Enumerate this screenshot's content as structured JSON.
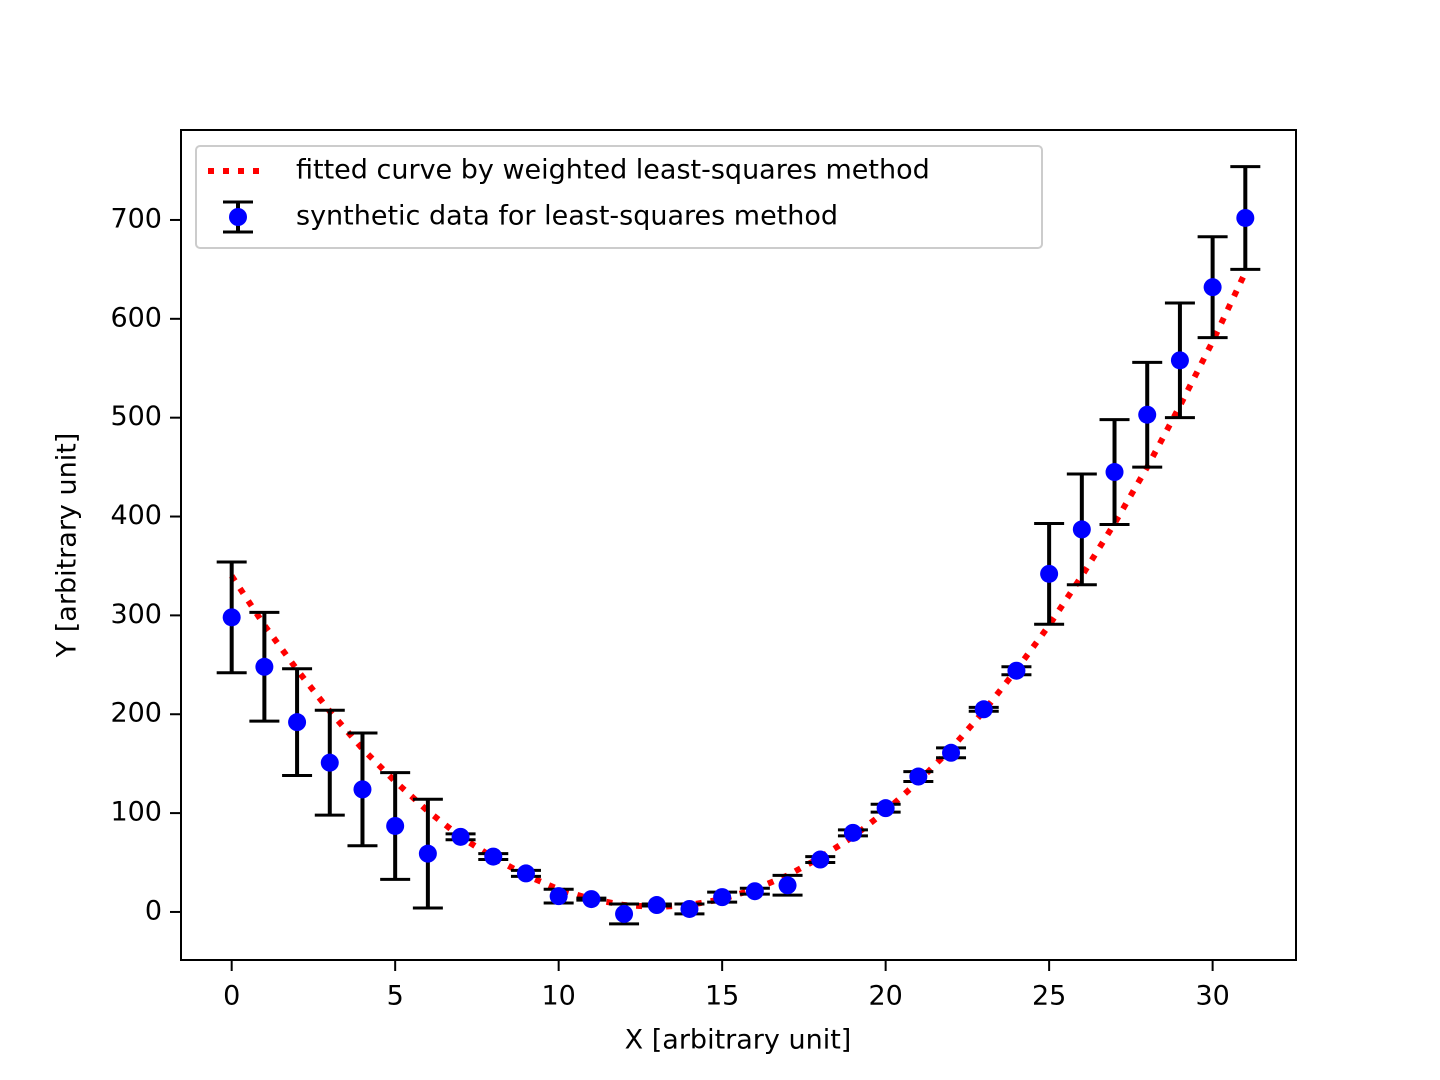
{
  "chart_data": {
    "type": "errorbar",
    "x_label": "X [arbitrary unit]",
    "y_label": "Y [arbitrary unit]",
    "x": [
      0,
      1,
      2,
      3,
      4,
      5,
      6,
      7,
      8,
      9,
      10,
      11,
      12,
      13,
      14,
      15,
      16,
      17,
      18,
      19,
      20,
      21,
      22,
      23,
      24,
      25,
      26,
      27,
      28,
      29,
      30,
      31
    ],
    "series": [
      {
        "name": "fitted curve by weighted least-squares method",
        "color": "#ff0000",
        "style": "dotted",
        "values": [
          340,
          290,
          245,
          203,
          165,
          132,
          102,
          76,
          55,
          37,
          23,
          13,
          7,
          5,
          7,
          13,
          23,
          37,
          55,
          76,
          102,
          132,
          165,
          203,
          245,
          290,
          340,
          393,
          450,
          512,
          577,
          647
        ]
      },
      {
        "name": "synthetic data for least-squares method",
        "color": "#0000ff",
        "error_color": "#000000",
        "values": [
          298,
          248,
          192,
          151,
          124,
          87,
          59,
          76,
          56,
          39,
          16,
          13,
          -2,
          7,
          3,
          15,
          21,
          27,
          53,
          80,
          105,
          137,
          161,
          205,
          244,
          342,
          387,
          445,
          503,
          558,
          632,
          702
        ],
        "errors": [
          56,
          55,
          54,
          53,
          57,
          54,
          55,
          3,
          3,
          3,
          7,
          1,
          10,
          1,
          5,
          5,
          3,
          10,
          3,
          3,
          4,
          5,
          5,
          2,
          4,
          51,
          56,
          53,
          53,
          58,
          51,
          52
        ]
      }
    ],
    "xlim": [
      -1.55,
      32.55
    ],
    "ylim": [
      -48.6,
      791
    ],
    "xticks": [
      0,
      5,
      10,
      15,
      20,
      25,
      30
    ],
    "yticks": [
      0,
      100,
      200,
      300,
      400,
      500,
      600,
      700
    ],
    "legend": "upper left"
  }
}
